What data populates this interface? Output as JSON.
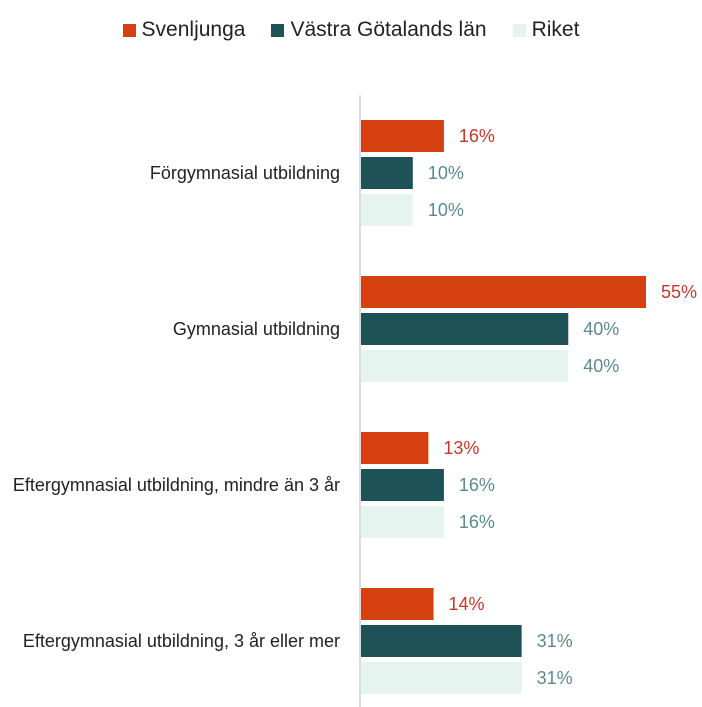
{
  "chart_data": {
    "type": "bar",
    "orientation": "horizontal",
    "categories": [
      "Förgymnasial utbildning",
      "Gymnasial utbildning",
      "Eftergymnasial utbildning, mindre än 3 år",
      "Eftergymnasial utbildning, 3 år eller mer"
    ],
    "series": [
      {
        "name": "Svenljunga",
        "color": "#d4400f",
        "label_color": "#c4372a",
        "values": [
          16,
          55,
          13,
          14
        ],
        "value_labels": [
          "16%",
          "55%",
          "13%",
          "14%"
        ]
      },
      {
        "name": "Västra Götalands län",
        "color": "#1f5257",
        "label_color": "#5b8a8e",
        "values": [
          10,
          40,
          16,
          31
        ],
        "value_labels": [
          "10%",
          "40%",
          "16%",
          "31%"
        ]
      },
      {
        "name": "Riket",
        "color": "#e6f4ef",
        "label_color": "#5b8a8e",
        "values": [
          10,
          40,
          16,
          31
        ],
        "value_labels": [
          "10%",
          "40%",
          "16%",
          "31%"
        ]
      }
    ],
    "legend": "top"
  }
}
